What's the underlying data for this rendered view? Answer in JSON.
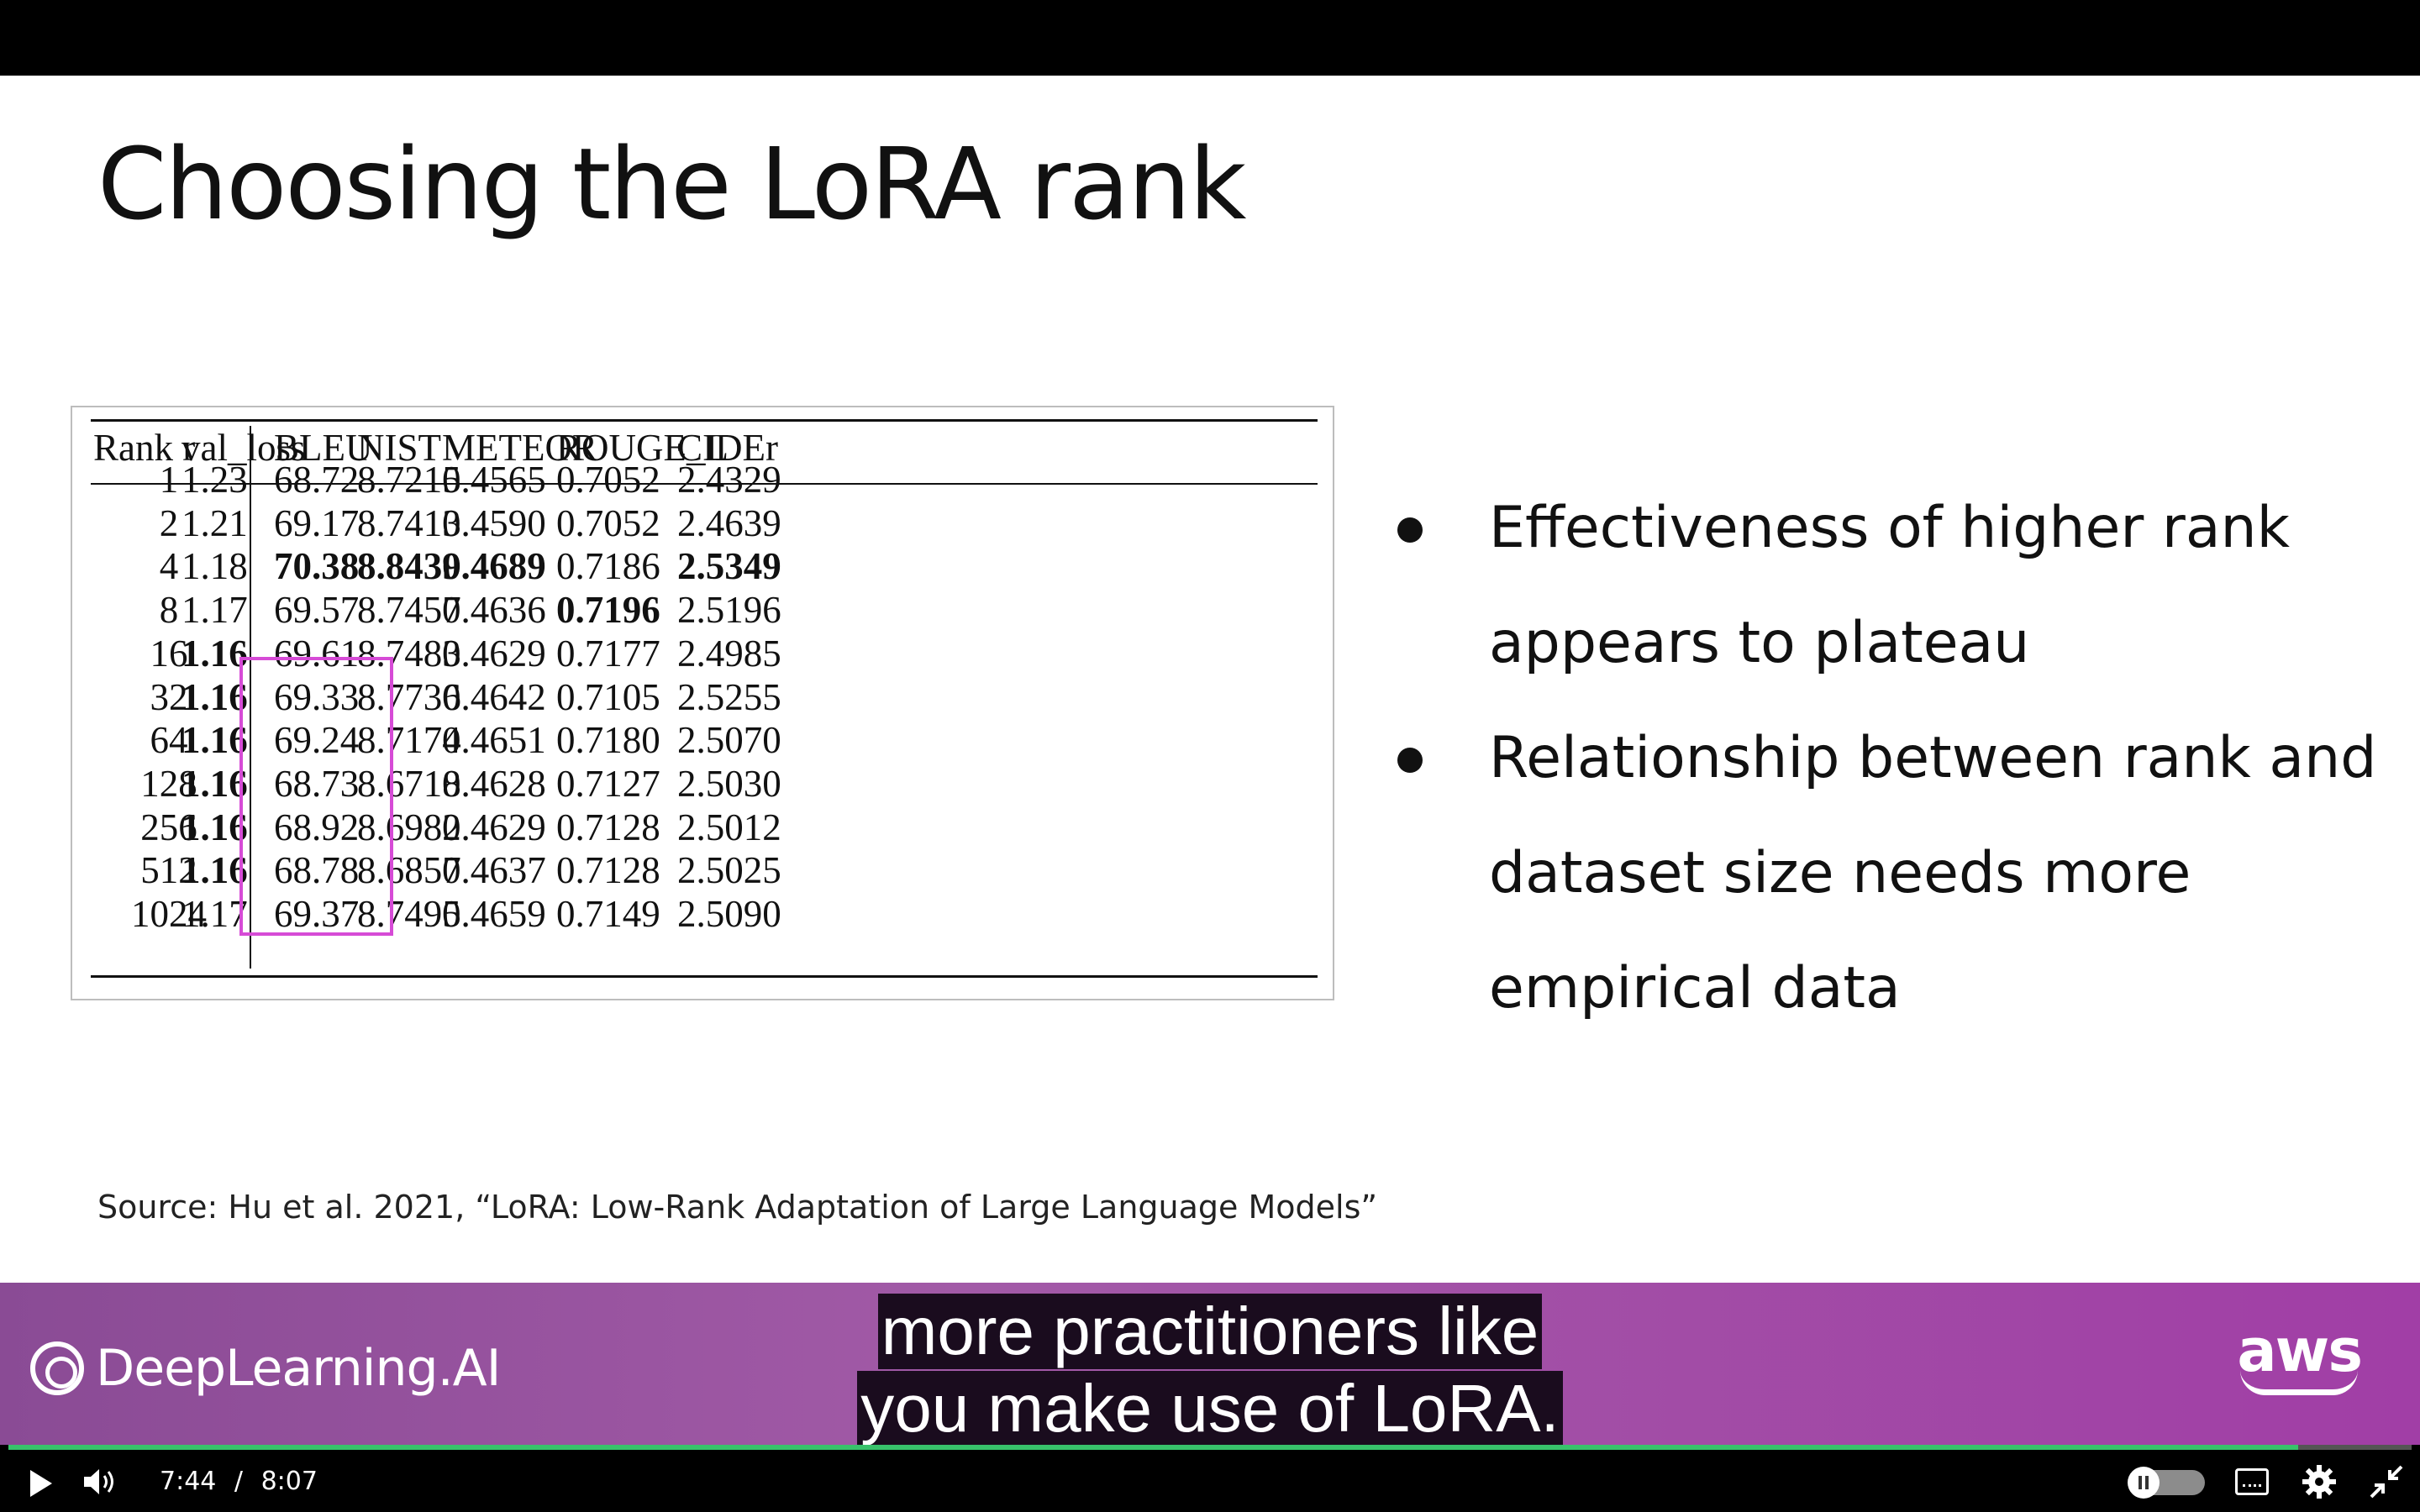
{
  "slide": {
    "title": "Choosing the LoRA rank",
    "bullets": [
      "Effectiveness of higher rank appears to plateau",
      "Relationship between rank and dataset size needs more empirical data"
    ],
    "source": "Source:  Hu et al. 2021, “LoRA: Low-Rank Adaptation of Large Language Models”"
  },
  "table": {
    "headers": [
      "Rank r",
      "val_loss",
      "BLEU",
      "NIST",
      "METEOR",
      "ROUGE_L",
      "CIDEr"
    ],
    "rows": [
      [
        "1",
        "1.23",
        "68.72",
        "8.7215",
        "0.4565",
        "0.7052",
        "2.4329"
      ],
      [
        "2",
        "1.21",
        "69.17",
        "8.7413",
        "0.4590",
        "0.7052",
        "2.4639"
      ],
      [
        "4",
        "1.18",
        "70.38",
        "8.8439",
        "0.4689",
        "0.7186",
        "2.5349"
      ],
      [
        "8",
        "1.17",
        "69.57",
        "8.7457",
        "0.4636",
        "0.7196",
        "2.5196"
      ],
      [
        "16",
        "1.16",
        "69.61",
        "8.7483",
        "0.4629",
        "0.7177",
        "2.4985"
      ],
      [
        "32",
        "1.16",
        "69.33",
        "8.7736",
        "0.4642",
        "0.7105",
        "2.5255"
      ],
      [
        "64",
        "1.16",
        "69.24",
        "8.7174",
        "0.4651",
        "0.7180",
        "2.5070"
      ],
      [
        "128",
        "1.16",
        "68.73",
        "8.6718",
        "0.4628",
        "0.7127",
        "2.5030"
      ],
      [
        "256",
        "1.16",
        "68.92",
        "8.6982",
        "0.4629",
        "0.7128",
        "2.5012"
      ],
      [
        "512",
        "1.16",
        "68.78",
        "8.6857",
        "0.4637",
        "0.7128",
        "2.5025"
      ],
      [
        "1024",
        "1.17",
        "69.37",
        "8.7495",
        "0.4659",
        "0.7149",
        "2.5090"
      ]
    ],
    "bold_cells": [
      [
        2,
        2
      ],
      [
        2,
        3
      ],
      [
        2,
        4
      ],
      [
        2,
        6
      ],
      [
        3,
        5
      ],
      [
        4,
        1
      ],
      [
        5,
        1
      ],
      [
        6,
        1
      ],
      [
        7,
        1
      ],
      [
        8,
        1
      ],
      [
        9,
        1
      ]
    ],
    "highlight_color": "#d64bd6"
  },
  "branding": {
    "left_logo": "DeepLearning.AI",
    "right_logo": "aws"
  },
  "captions": [
    "more practitioners like",
    "you make use of LoRA."
  ],
  "player": {
    "current_time": "7:44",
    "separator": "/",
    "duration": "8:07",
    "progress_fraction": 0.9528,
    "progress_color": "#38c26b"
  }
}
